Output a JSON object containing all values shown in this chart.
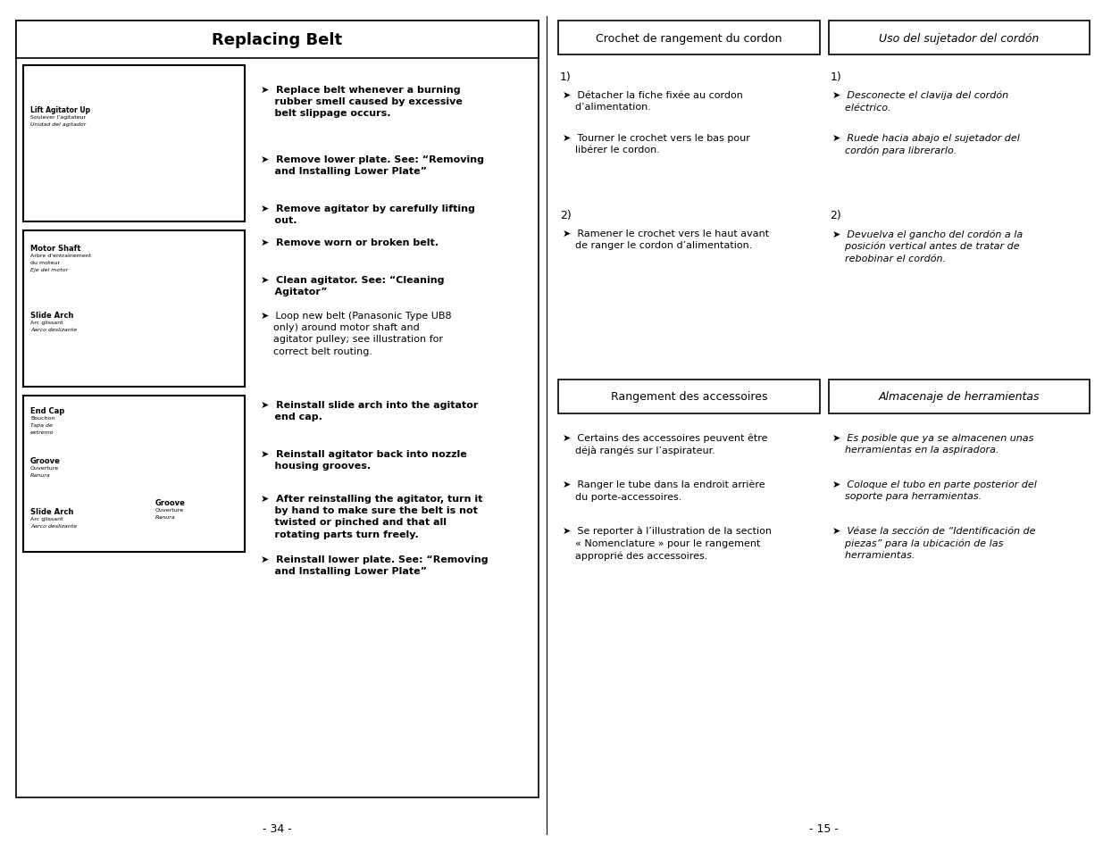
{
  "page_bg": "#ffffff",
  "left_title": "Replacing Belt",
  "left_instructions": [
    "➤  Replace belt whenever a burning\n    rubber smell caused by excessive\n    belt slippage occurs.",
    "➤  Remove lower plate. See: “Removing\n    and Installing Lower Plate”",
    "➤  Remove agitator by carefully lifting\n    out.",
    "➤  Remove worn or broken belt.",
    "➤  Clean agitator. See: “Cleaning\n    Agitator”",
    "➤  Loop new belt (Panasonic Type UB8\n    only) around motor shaft and\n    agitator pulley; see illustration for\n    correct belt routing.",
    "➤  Reinstall slide arch into the agitator\n    end cap.",
    "➤  Reinstall agitator back into nozzle\n    housing grooves.",
    "➤  After reinstalling the agitator, turn it\n    by hand to make sure the belt is not\n    twisted or pinched and that all\n    rotating parts turn freely.",
    "➤  Reinstall lower plate. See: “Removing\n    and Installing Lower Plate”"
  ],
  "right_col1_header": "Crochet de rangement du cordon",
  "right_col2_header": "Uso del sujetador del cordón",
  "right_col1_sec1_label": "1)",
  "right_col1_sec1_items": [
    "➤  Détacher la fiche fixée au cordon\n    d’alimentation.",
    "➤  Tourner le crochet vers le bas pour\n    libérer le cordon."
  ],
  "right_col2_sec1_label": "1)",
  "right_col2_sec1_items": [
    "➤  Desconecte el clavija del cordón\n    eléctrico.",
    "➤  Ruede hacia abajo el sujetador del\n    cordón para librerarlo."
  ],
  "right_col1_sec2_label": "2)",
  "right_col1_sec2_items": [
    "➤  Ramener le crochet vers le haut avant\n    de ranger le cordon d’alimentation."
  ],
  "right_col2_sec2_label": "2)",
  "right_col2_sec2_items": [
    "➤  Devuelva el gancho del cordón a la\n    posición vertical antes de tratar de\n    rebobinar el cordón."
  ],
  "right_col1_sec3_header": "Rangement des accessoires",
  "right_col2_sec3_header": "Almacenaje de herramientas",
  "right_col1_sec3_items": [
    "➤  Certains des accessoires peuvent être\n    déjà rangés sur l’aspirateur.",
    "➤  Ranger le tube dans la endroit arrière\n    du porte-accessoires.",
    "➤  Se reporter à l’illustration de la section\n    « Nomenclature » pour le rangement\n    approprié des accessoires."
  ],
  "right_col2_sec3_items": [
    "➤  Es posible que ya se almacenen unas\n    herramientas en la aspiradora.",
    "➤  Coloque el tubo en parte posterior del\n    soporte para herramientas.",
    "➤  Véase la sección de “Identificación de\n    piezas” para la ubicación de las\n    herramientas."
  ],
  "page_num_left": "- 34 -",
  "page_num_right": "- 15 -"
}
